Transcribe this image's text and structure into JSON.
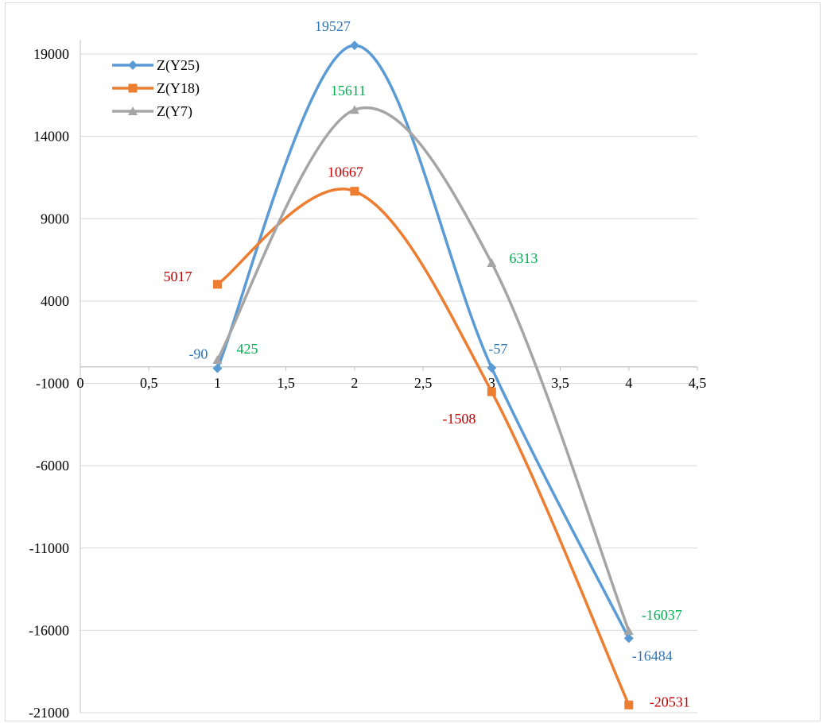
{
  "chart_data": {
    "type": "line",
    "title": "",
    "xlabel": "",
    "ylabel": "",
    "xlim": [
      0,
      4.5
    ],
    "ylim": [
      -21000,
      19000
    ],
    "x_ticks": [
      "0",
      "0,5",
      "1",
      "1,5",
      "2",
      "2,5",
      "3",
      "3,5",
      "4",
      "4,5"
    ],
    "y_ticks": [
      "19000",
      "14000",
      "9000",
      "4000",
      "-1000",
      "-6000",
      "-11000",
      "-16000",
      "-21000"
    ],
    "grid": "horizontal",
    "legend_position": "top-left",
    "smooth": true,
    "x": [
      1,
      2,
      3,
      4
    ],
    "series": [
      {
        "name": "Z(Y25)",
        "values": [
          -90,
          19527,
          -57,
          -16484
        ],
        "labels": [
          "-90",
          "19527",
          "-57",
          "-16484"
        ],
        "color": "#5b9bd5",
        "label_color": "#2e75b6",
        "marker": "diamond"
      },
      {
        "name": "Z(Y18)",
        "values": [
          5017,
          10667,
          -1508,
          -20531
        ],
        "labels": [
          "5017",
          "10667",
          "-1508",
          "-20531"
        ],
        "color": "#ed7d31",
        "label_color": "#c00000",
        "marker": "square"
      },
      {
        "name": "Z(Y7)",
        "values": [
          425,
          15611,
          6313,
          -16037
        ],
        "labels": [
          "425",
          "15611",
          "6313",
          "-16037"
        ],
        "color": "#a5a5a5",
        "label_color": "#00b050",
        "marker": "triangle"
      }
    ]
  }
}
